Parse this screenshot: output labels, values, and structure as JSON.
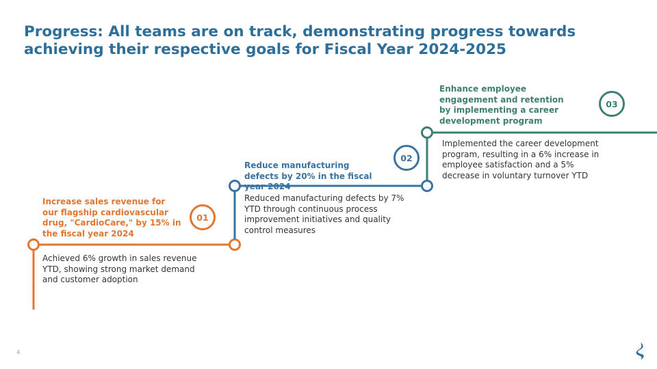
{
  "slide": {
    "title": "Progress: All teams are on track, demonstrating progress towards achieving their respective goals for Fiscal Year 2024-2025",
    "page_number": "4"
  },
  "colors": {
    "title": "#2e6f99",
    "step1": "#e07630",
    "step2": "#3a73a0",
    "step3": "#3e7f73"
  },
  "steps": [
    {
      "number": "01",
      "goal": "Increase sales revenue for our flagship cardiovascular drug, \"CardioCare,\" by 15% in the fiscal year 2024",
      "progress": "Achieved 6% growth in sales revenue YTD, showing strong market demand and customer adoption"
    },
    {
      "number": "02",
      "goal": "Reduce manufacturing defects by 20% in the fiscal year 2024",
      "progress": "Reduced manufacturing defects by 7% YTD through continuous process improvement initiatives and quality control measures"
    },
    {
      "number": "03",
      "goal": "Enhance employee engagement and retention by implementing a career development program",
      "progress": "Implemented the career development program, resulting in a 6% increase in employee satisfaction and a 5% decrease in voluntary turnover YTD"
    }
  ],
  "logo": {
    "icon": "company-logo-icon"
  }
}
